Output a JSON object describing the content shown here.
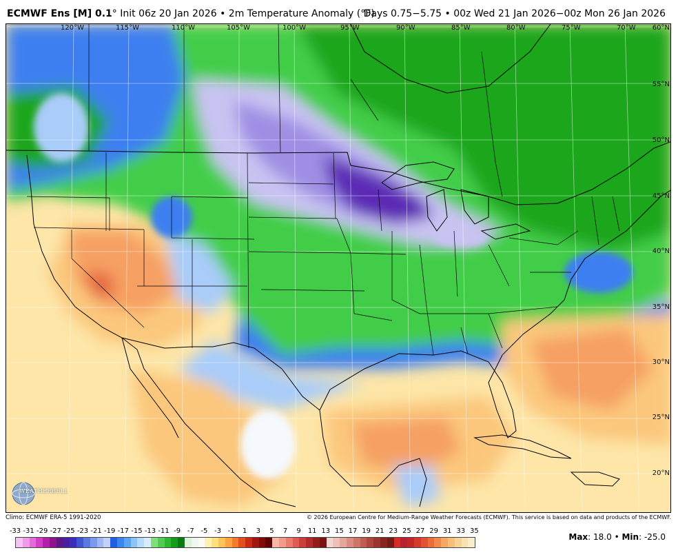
{
  "header": {
    "model": "ECMWF Ens [M] 0.1",
    "degree": "°",
    "init_info": "Init 06z 20 Jan 2026",
    "sep": "•",
    "field": "2m Temperature Anomaly (°F)",
    "valid_range": "Days 0.75−5.75 • 00z Wed 21 Jan 2026−00z Mon 26 Jan 2026"
  },
  "longitude_labels": [
    "120°W",
    "115°W",
    "110°W",
    "105°W",
    "100°W",
    "95°W",
    "90°W",
    "85°W",
    "80°W",
    "75°W",
    "70°W"
  ],
  "latitude_labels": [
    "60°N",
    "55°N",
    "50°N",
    "45°N",
    "40°N",
    "35°N",
    "30°N",
    "25°N",
    "20°N"
  ],
  "footer": {
    "climo": "Climo: ECMWF ERA-5 1991-2020",
    "copyright": "© 2026 European Centre for Medium-Range Weather Forecasts (ECMWF). This service is based on data and products of the ECMWF."
  },
  "logo_text": "WEATHERBELL",
  "scale": {
    "labels": [
      "-33",
      "-31",
      "-29",
      "-27",
      "-25",
      "-23",
      "-21",
      "-19",
      "-17",
      "-15",
      "-13",
      "-11",
      "-9",
      "-7",
      "-5",
      "-3",
      "-1",
      "1",
      "3",
      "5",
      "7",
      "9",
      "11",
      "13",
      "15",
      "17",
      "19",
      "21",
      "23",
      "25",
      "27",
      "29",
      "31",
      "33",
      "35"
    ],
    "colors": [
      "#f7c2f5",
      "#f19ae8",
      "#e56ad9",
      "#d23fc6",
      "#b51ea8",
      "#8f1389",
      "#5f1686",
      "#4b1fa2",
      "#3a2fbb",
      "#4155d0",
      "#5b7ae0",
      "#7c9aec",
      "#a0b8f2",
      "#c3d0f7",
      "#1f5fe0",
      "#3a86f0",
      "#5aa6f6",
      "#8cc4f9",
      "#b5dcfb",
      "#d7ecfc",
      "#7de07a",
      "#52cc52",
      "#2db82f",
      "#129e1a",
      "#0a7a12",
      "#d9f5d5",
      "#eef6ee",
      "#fbfbf5",
      "#fff2b0",
      "#ffe07e",
      "#ffc35a",
      "#ffa23f",
      "#f47a2c",
      "#e34f1d",
      "#c82b14",
      "#a4160d",
      "#7e0b07",
      "#5a0504",
      "#f7b8a6",
      "#f49a89",
      "#ec7b6d",
      "#e05c52",
      "#cc3f3a",
      "#b22b2a",
      "#951c1d",
      "#7a1212",
      "#f5d6cf",
      "#efc0b6",
      "#e6a79b",
      "#dc8d81",
      "#cf7468",
      "#c15c52",
      "#b0473f",
      "#9d352f",
      "#87261f",
      "#741b15",
      "#d92a2a",
      "#b4232f",
      "#c32727",
      "#d33a2c",
      "#e05230",
      "#ea6e3b",
      "#f18b4c",
      "#f6a763",
      "#f8be7c",
      "#f9d296",
      "#f9e2b1",
      "#f8eecd"
    ]
  },
  "stats": {
    "max_label": "Max",
    "max_value": ": 18.0",
    "sep": "•",
    "min_label": "Min",
    "min_value": ": -25.0"
  },
  "colors": {
    "cold_core": "#5b2ab5",
    "cold_mid": "#9f8fe4",
    "cold_light": "#c9c3f2",
    "green_dark": "#1aa61f",
    "green_mid": "#43cd48",
    "green_light": "#8ae27f",
    "blue_mid": "#3d7ff0",
    "blue_light": "#a9ccf9",
    "white": "#f5f8fc",
    "warm_light": "#fde6a8",
    "warm_mid": "#fbc77d",
    "warm_orange": "#f6a063",
    "warm_red": "#e56a3f"
  }
}
